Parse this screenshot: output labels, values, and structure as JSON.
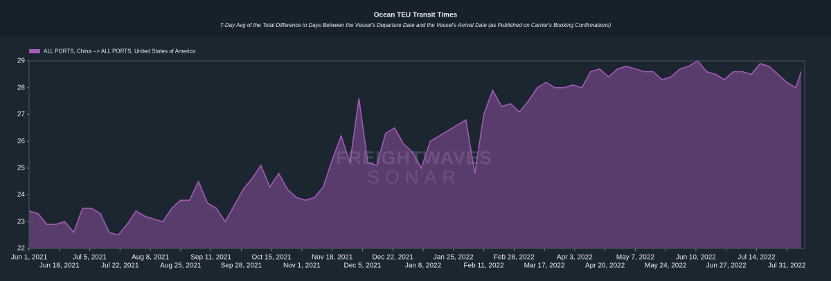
{
  "chart_data": {
    "type": "area",
    "title": "Ocean TEU Transit Times",
    "subtitle": "7-Day Avg of the Total Difference in Days Between the Vessel's Departure Date and the Vessel's Arrival Date (as Published on Carrier's Booking Confirmations)",
    "watermark": [
      "FREIGHTWAVES",
      "SONAR"
    ],
    "legend": "top-left",
    "grid": false,
    "x": [
      "2021-06-01",
      "2021-06-06",
      "2021-06-11",
      "2021-06-16",
      "2021-06-21",
      "2021-06-26",
      "2021-07-01",
      "2021-07-06",
      "2021-07-11",
      "2021-07-16",
      "2021-07-21",
      "2021-07-26",
      "2021-07-31",
      "2021-08-05",
      "2021-08-10",
      "2021-08-15",
      "2021-08-20",
      "2021-08-25",
      "2021-08-30",
      "2021-09-04",
      "2021-09-09",
      "2021-09-14",
      "2021-09-19",
      "2021-09-24",
      "2021-09-29",
      "2021-10-04",
      "2021-10-09",
      "2021-10-14",
      "2021-10-19",
      "2021-10-24",
      "2021-10-29",
      "2021-11-03",
      "2021-11-08",
      "2021-11-13",
      "2021-11-18",
      "2021-11-23",
      "2021-11-28",
      "2021-12-03",
      "2021-12-08",
      "2021-12-13",
      "2021-12-18",
      "2021-12-23",
      "2021-12-28",
      "2022-01-02",
      "2022-01-07",
      "2022-01-12",
      "2022-01-17",
      "2022-01-22",
      "2022-01-27",
      "2022-02-01",
      "2022-02-06",
      "2022-02-11",
      "2022-02-16",
      "2022-02-21",
      "2022-02-26",
      "2022-03-03",
      "2022-03-08",
      "2022-03-13",
      "2022-03-18",
      "2022-03-23",
      "2022-03-28",
      "2022-04-02",
      "2022-04-07",
      "2022-04-12",
      "2022-04-17",
      "2022-04-22",
      "2022-04-27",
      "2022-05-02",
      "2022-05-07",
      "2022-05-12",
      "2022-05-17",
      "2022-05-22",
      "2022-05-27",
      "2022-06-01",
      "2022-06-06",
      "2022-06-11",
      "2022-06-16",
      "2022-06-21",
      "2022-06-26",
      "2022-07-01",
      "2022-07-06",
      "2022-07-11",
      "2022-07-16",
      "2022-07-21",
      "2022-07-26",
      "2022-07-31",
      "2022-08-05",
      "2022-08-08"
    ],
    "series": [
      {
        "name": "ALL PORTS, China --> ALL PORTS, United States of America",
        "color": "#a45bb5",
        "values": [
          23.4,
          23.3,
          22.9,
          22.9,
          23.0,
          22.6,
          23.5,
          23.5,
          23.3,
          22.6,
          22.5,
          22.9,
          23.4,
          23.2,
          23.1,
          23.0,
          23.5,
          23.8,
          23.8,
          24.5,
          23.7,
          23.5,
          23.0,
          23.6,
          24.2,
          24.6,
          25.1,
          24.3,
          24.8,
          24.2,
          23.9,
          23.8,
          23.9,
          24.3,
          25.3,
          26.2,
          25.2,
          27.6,
          25.2,
          25.1,
          26.3,
          26.5,
          25.9,
          25.6,
          25.0,
          26.0,
          26.2,
          26.4,
          26.6,
          26.8,
          24.8,
          27.0,
          27.9,
          27.3,
          27.4,
          27.1,
          27.5,
          28.0,
          28.2,
          28.0,
          28.0,
          28.1,
          28.0,
          28.6,
          28.7,
          28.4,
          28.7,
          28.8,
          28.7,
          28.6,
          28.6,
          28.3,
          28.4,
          28.7,
          28.8,
          29.0,
          28.6,
          28.5,
          28.3,
          28.6,
          28.6,
          28.5,
          28.9,
          28.8,
          28.5,
          28.2,
          28.0,
          28.6
        ]
      }
    ],
    "xlim": [
      "2021-06-01",
      "2022-08-10"
    ],
    "xticks": [
      {
        "value": "2021-06-01",
        "label": "Jun 1, 2021"
      },
      {
        "value": "2021-06-18",
        "label": "Jun 18, 2021"
      },
      {
        "value": "2021-07-05",
        "label": "Jul 5, 2021"
      },
      {
        "value": "2021-07-22",
        "label": "Jul 22, 2021"
      },
      {
        "value": "2021-08-08",
        "label": "Aug 8, 2021"
      },
      {
        "value": "2021-08-25",
        "label": "Aug 25, 2021"
      },
      {
        "value": "2021-09-11",
        "label": "Sep 11, 2021"
      },
      {
        "value": "2021-09-28",
        "label": "Sep 28, 2021"
      },
      {
        "value": "2021-10-15",
        "label": "Oct 15, 2021"
      },
      {
        "value": "2021-11-01",
        "label": "Nov 1, 2021"
      },
      {
        "value": "2021-11-18",
        "label": "Nov 18, 2021"
      },
      {
        "value": "2021-12-05",
        "label": "Dec 5, 2021"
      },
      {
        "value": "2021-12-22",
        "label": "Dec 22, 2021"
      },
      {
        "value": "2022-01-08",
        "label": "Jan 8, 2022"
      },
      {
        "value": "2022-01-25",
        "label": "Jan 25, 2022"
      },
      {
        "value": "2022-02-11",
        "label": "Feb 11, 2022"
      },
      {
        "value": "2022-02-28",
        "label": "Feb 28, 2022"
      },
      {
        "value": "2022-03-17",
        "label": "Mar 17, 2022"
      },
      {
        "value": "2022-04-03",
        "label": "Apr 3, 2022"
      },
      {
        "value": "2022-04-20",
        "label": "Apr 20, 2022"
      },
      {
        "value": "2022-05-07",
        "label": "May 7, 2022"
      },
      {
        "value": "2022-05-24",
        "label": "May 24, 2022"
      },
      {
        "value": "2022-06-10",
        "label": "Jun 10, 2022"
      },
      {
        "value": "2022-06-27",
        "label": "Jun 27, 2022"
      },
      {
        "value": "2022-07-14",
        "label": "Jul 14, 2022"
      },
      {
        "value": "2022-07-31",
        "label": "Jul 31, 2022"
      }
    ],
    "ylim": [
      22,
      29
    ],
    "yticks": [
      22,
      23,
      24,
      25,
      26,
      27,
      28,
      29
    ]
  }
}
